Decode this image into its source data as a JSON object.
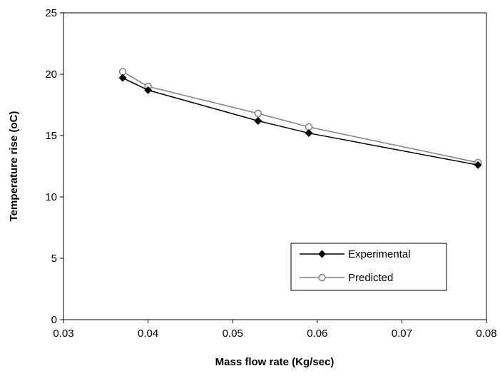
{
  "chart_data": {
    "type": "line",
    "title": "",
    "xlabel": "Mass flow rate (Kg/sec)",
    "ylabel": "Temperature rise (oC)",
    "xlim": [
      0.03,
      0.08
    ],
    "ylim": [
      0,
      25
    ],
    "x_ticks": [
      "0.03",
      "0.04",
      "0.05",
      "0.06",
      "0.07",
      "0.08"
    ],
    "y_ticks": [
      "0",
      "5",
      "10",
      "15",
      "20",
      "25"
    ],
    "grid": false,
    "legend_position": "bottom-right",
    "series": [
      {
        "name": "Experimental",
        "marker": "filled-diamond",
        "color": "#000000",
        "x": [
          0.037,
          0.04,
          0.053,
          0.059,
          0.079
        ],
        "y": [
          19.7,
          18.7,
          16.2,
          15.2,
          12.6
        ]
      },
      {
        "name": "Predicted",
        "marker": "open-circle",
        "color": "#808080",
        "x": [
          0.037,
          0.04,
          0.053,
          0.059,
          0.079
        ],
        "y": [
          20.2,
          19.0,
          16.8,
          15.7,
          12.8
        ]
      }
    ]
  }
}
